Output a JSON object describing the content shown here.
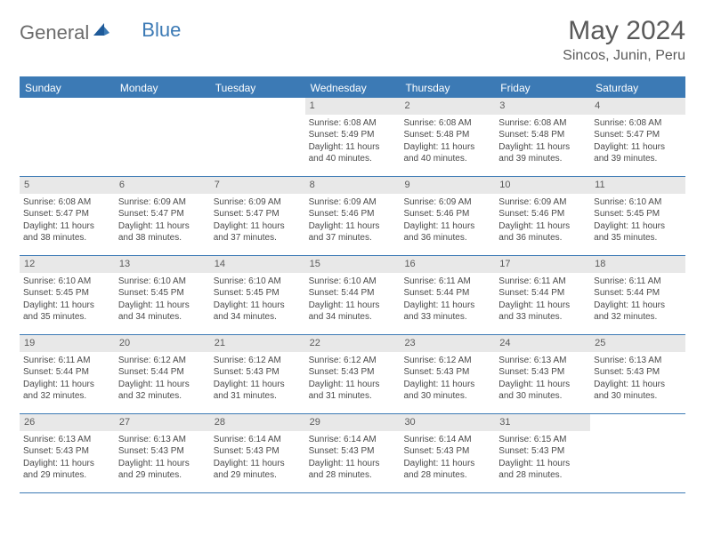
{
  "logo": {
    "text1": "General",
    "text2": "Blue"
  },
  "title": "May 2024",
  "location": "Sincos, Junin, Peru",
  "colors": {
    "header_bg": "#3c7ab5",
    "daynum_bg": "#e8e8e8",
    "text": "#4a4a4a",
    "title_text": "#5a5a5a"
  },
  "weekdays": [
    "Sunday",
    "Monday",
    "Tuesday",
    "Wednesday",
    "Thursday",
    "Friday",
    "Saturday"
  ],
  "weeks": [
    [
      {
        "day": "",
        "sunrise": "",
        "sunset": "",
        "daylight": ""
      },
      {
        "day": "",
        "sunrise": "",
        "sunset": "",
        "daylight": ""
      },
      {
        "day": "",
        "sunrise": "",
        "sunset": "",
        "daylight": ""
      },
      {
        "day": "1",
        "sunrise": "Sunrise: 6:08 AM",
        "sunset": "Sunset: 5:49 PM",
        "daylight": "Daylight: 11 hours and 40 minutes."
      },
      {
        "day": "2",
        "sunrise": "Sunrise: 6:08 AM",
        "sunset": "Sunset: 5:48 PM",
        "daylight": "Daylight: 11 hours and 40 minutes."
      },
      {
        "day": "3",
        "sunrise": "Sunrise: 6:08 AM",
        "sunset": "Sunset: 5:48 PM",
        "daylight": "Daylight: 11 hours and 39 minutes."
      },
      {
        "day": "4",
        "sunrise": "Sunrise: 6:08 AM",
        "sunset": "Sunset: 5:47 PM",
        "daylight": "Daylight: 11 hours and 39 minutes."
      }
    ],
    [
      {
        "day": "5",
        "sunrise": "Sunrise: 6:08 AM",
        "sunset": "Sunset: 5:47 PM",
        "daylight": "Daylight: 11 hours and 38 minutes."
      },
      {
        "day": "6",
        "sunrise": "Sunrise: 6:09 AM",
        "sunset": "Sunset: 5:47 PM",
        "daylight": "Daylight: 11 hours and 38 minutes."
      },
      {
        "day": "7",
        "sunrise": "Sunrise: 6:09 AM",
        "sunset": "Sunset: 5:47 PM",
        "daylight": "Daylight: 11 hours and 37 minutes."
      },
      {
        "day": "8",
        "sunrise": "Sunrise: 6:09 AM",
        "sunset": "Sunset: 5:46 PM",
        "daylight": "Daylight: 11 hours and 37 minutes."
      },
      {
        "day": "9",
        "sunrise": "Sunrise: 6:09 AM",
        "sunset": "Sunset: 5:46 PM",
        "daylight": "Daylight: 11 hours and 36 minutes."
      },
      {
        "day": "10",
        "sunrise": "Sunrise: 6:09 AM",
        "sunset": "Sunset: 5:46 PM",
        "daylight": "Daylight: 11 hours and 36 minutes."
      },
      {
        "day": "11",
        "sunrise": "Sunrise: 6:10 AM",
        "sunset": "Sunset: 5:45 PM",
        "daylight": "Daylight: 11 hours and 35 minutes."
      }
    ],
    [
      {
        "day": "12",
        "sunrise": "Sunrise: 6:10 AM",
        "sunset": "Sunset: 5:45 PM",
        "daylight": "Daylight: 11 hours and 35 minutes."
      },
      {
        "day": "13",
        "sunrise": "Sunrise: 6:10 AM",
        "sunset": "Sunset: 5:45 PM",
        "daylight": "Daylight: 11 hours and 34 minutes."
      },
      {
        "day": "14",
        "sunrise": "Sunrise: 6:10 AM",
        "sunset": "Sunset: 5:45 PM",
        "daylight": "Daylight: 11 hours and 34 minutes."
      },
      {
        "day": "15",
        "sunrise": "Sunrise: 6:10 AM",
        "sunset": "Sunset: 5:44 PM",
        "daylight": "Daylight: 11 hours and 34 minutes."
      },
      {
        "day": "16",
        "sunrise": "Sunrise: 6:11 AM",
        "sunset": "Sunset: 5:44 PM",
        "daylight": "Daylight: 11 hours and 33 minutes."
      },
      {
        "day": "17",
        "sunrise": "Sunrise: 6:11 AM",
        "sunset": "Sunset: 5:44 PM",
        "daylight": "Daylight: 11 hours and 33 minutes."
      },
      {
        "day": "18",
        "sunrise": "Sunrise: 6:11 AM",
        "sunset": "Sunset: 5:44 PM",
        "daylight": "Daylight: 11 hours and 32 minutes."
      }
    ],
    [
      {
        "day": "19",
        "sunrise": "Sunrise: 6:11 AM",
        "sunset": "Sunset: 5:44 PM",
        "daylight": "Daylight: 11 hours and 32 minutes."
      },
      {
        "day": "20",
        "sunrise": "Sunrise: 6:12 AM",
        "sunset": "Sunset: 5:44 PM",
        "daylight": "Daylight: 11 hours and 32 minutes."
      },
      {
        "day": "21",
        "sunrise": "Sunrise: 6:12 AM",
        "sunset": "Sunset: 5:43 PM",
        "daylight": "Daylight: 11 hours and 31 minutes."
      },
      {
        "day": "22",
        "sunrise": "Sunrise: 6:12 AM",
        "sunset": "Sunset: 5:43 PM",
        "daylight": "Daylight: 11 hours and 31 minutes."
      },
      {
        "day": "23",
        "sunrise": "Sunrise: 6:12 AM",
        "sunset": "Sunset: 5:43 PM",
        "daylight": "Daylight: 11 hours and 30 minutes."
      },
      {
        "day": "24",
        "sunrise": "Sunrise: 6:13 AM",
        "sunset": "Sunset: 5:43 PM",
        "daylight": "Daylight: 11 hours and 30 minutes."
      },
      {
        "day": "25",
        "sunrise": "Sunrise: 6:13 AM",
        "sunset": "Sunset: 5:43 PM",
        "daylight": "Daylight: 11 hours and 30 minutes."
      }
    ],
    [
      {
        "day": "26",
        "sunrise": "Sunrise: 6:13 AM",
        "sunset": "Sunset: 5:43 PM",
        "daylight": "Daylight: 11 hours and 29 minutes."
      },
      {
        "day": "27",
        "sunrise": "Sunrise: 6:13 AM",
        "sunset": "Sunset: 5:43 PM",
        "daylight": "Daylight: 11 hours and 29 minutes."
      },
      {
        "day": "28",
        "sunrise": "Sunrise: 6:14 AM",
        "sunset": "Sunset: 5:43 PM",
        "daylight": "Daylight: 11 hours and 29 minutes."
      },
      {
        "day": "29",
        "sunrise": "Sunrise: 6:14 AM",
        "sunset": "Sunset: 5:43 PM",
        "daylight": "Daylight: 11 hours and 28 minutes."
      },
      {
        "day": "30",
        "sunrise": "Sunrise: 6:14 AM",
        "sunset": "Sunset: 5:43 PM",
        "daylight": "Daylight: 11 hours and 28 minutes."
      },
      {
        "day": "31",
        "sunrise": "Sunrise: 6:15 AM",
        "sunset": "Sunset: 5:43 PM",
        "daylight": "Daylight: 11 hours and 28 minutes."
      },
      {
        "day": "",
        "sunrise": "",
        "sunset": "",
        "daylight": ""
      }
    ]
  ]
}
